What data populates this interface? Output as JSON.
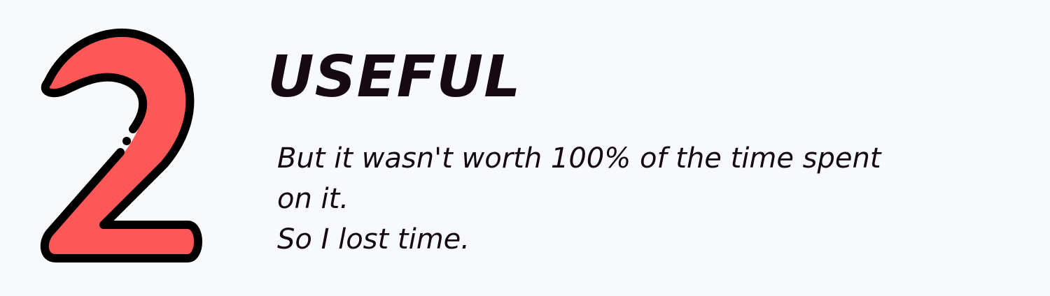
{
  "number": "2",
  "icon": "number-two-icon",
  "colors": {
    "number_fill": "#fd5858",
    "outline": "#000000",
    "text": "#140a0f",
    "background": "#f8f9fb"
  },
  "title": "USEFUL",
  "description": [
    "But it wasn't worth 100% of the time spent",
    "on it.",
    "So I lost time."
  ]
}
